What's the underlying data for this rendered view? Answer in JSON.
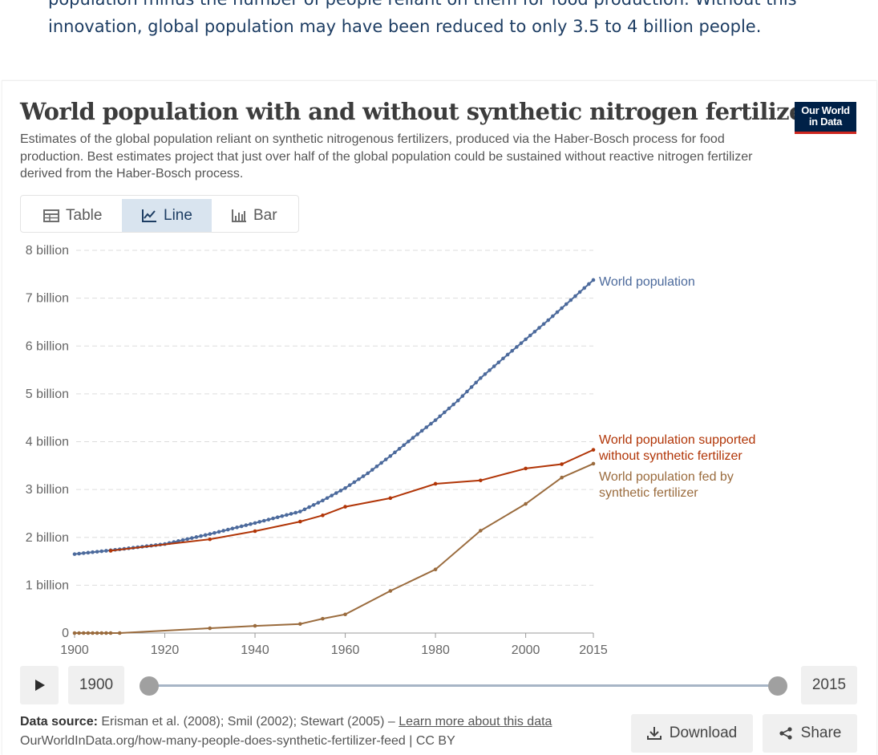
{
  "article": {
    "line1": "population minus the number of people reliant on them for food production. Without this",
    "line2": "innovation, global population may have been reduced to only 3.5 to 4 billion people."
  },
  "header": {
    "title": "World population with and without synthetic nitrogen fertilizers",
    "subtitle": "Estimates of the global population reliant on synthetic nitrogenous fertilizers, produced via the Haber-Bosch process for food production. Best estimates project that just over half of the global population could be sustained without reactive nitrogen fertilizer derived from the Haber-Bosch process.",
    "logo_line1": "Our World",
    "logo_line2": "in Data"
  },
  "tabs": [
    {
      "label": "Table",
      "icon": "table-icon"
    },
    {
      "label": "Line",
      "icon": "line-chart-icon",
      "active": true
    },
    {
      "label": "Bar",
      "icon": "bar-chart-icon"
    }
  ],
  "timeline": {
    "start_year": "1900",
    "end_year": "2015",
    "selected_start_fraction": 0,
    "selected_end_fraction": 1
  },
  "footer": {
    "source_label": "Data source:",
    "source_text": "Erisman et al. (2008); Smil (2002); Stewart (2005) –",
    "learn_more": "Learn more about this data",
    "line2": "OurWorldInData.org/how-many-people-does-synthetic-fertilizer-feed | CC BY",
    "download": "Download",
    "share": "Share"
  },
  "colors": {
    "world_population": "#4c6a9c",
    "without_fertilizer": "#b13507",
    "fed_by_fertilizer": "#9a6b3d",
    "accent": "#1d3d63"
  },
  "chart_data": {
    "type": "line",
    "title": "World population with and without synthetic nitrogen fertilizers",
    "xlim": [
      1900,
      2015
    ],
    "ylim": [
      0,
      8000000000
    ],
    "x_ticks": [
      {
        "value": 1900,
        "label": "1900"
      },
      {
        "value": 1920,
        "label": "1920"
      },
      {
        "value": 1940,
        "label": "1940"
      },
      {
        "value": 1960,
        "label": "1960"
      },
      {
        "value": 1980,
        "label": "1980"
      },
      {
        "value": 2000,
        "label": "2000"
      },
      {
        "value": 2015,
        "label": "2015"
      }
    ],
    "y_ticks": [
      {
        "value": 0,
        "label": "0"
      },
      {
        "value": 1000000000,
        "label": "1 billion"
      },
      {
        "value": 2000000000,
        "label": "2 billion"
      },
      {
        "value": 3000000000,
        "label": "3 billion"
      },
      {
        "value": 4000000000,
        "label": "4 billion"
      },
      {
        "value": 5000000000,
        "label": "5 billion"
      },
      {
        "value": 6000000000,
        "label": "6 billion"
      },
      {
        "value": 7000000000,
        "label": "7 billion"
      },
      {
        "value": 8000000000,
        "label": "8 billion"
      }
    ],
    "grid": "horizontal dashed",
    "series": [
      {
        "name": "World population",
        "color": "#4c6a9c",
        "points": [
          [
            1900,
            1650000000
          ],
          [
            1910,
            1750000000
          ],
          [
            1920,
            1860000000
          ],
          [
            1930,
            2070000000
          ],
          [
            1940,
            2300000000
          ],
          [
            1950,
            2540000000
          ],
          [
            1955,
            2770000000
          ],
          [
            1960,
            3030000000
          ],
          [
            1965,
            3340000000
          ],
          [
            1970,
            3700000000
          ],
          [
            1975,
            4080000000
          ],
          [
            1980,
            4450000000
          ],
          [
            1985,
            4860000000
          ],
          [
            1990,
            5330000000
          ],
          [
            1995,
            5740000000
          ],
          [
            2000,
            6140000000
          ],
          [
            2005,
            6540000000
          ],
          [
            2010,
            6960000000
          ],
          [
            2015,
            7380000000
          ]
        ]
      },
      {
        "name": "World population supported without synthetic fertilizer",
        "color": "#b13507",
        "points": [
          [
            1908,
            1720000000
          ],
          [
            1930,
            1960000000
          ],
          [
            1940,
            2130000000
          ],
          [
            1950,
            2330000000
          ],
          [
            1955,
            2460000000
          ],
          [
            1960,
            2640000000
          ],
          [
            1970,
            2820000000
          ],
          [
            1980,
            3120000000
          ],
          [
            1990,
            3190000000
          ],
          [
            2000,
            3440000000
          ],
          [
            2008,
            3530000000
          ],
          [
            2015,
            3830000000
          ]
        ]
      },
      {
        "name": "World population fed by synthetic fertilizer",
        "color": "#9a6b3d",
        "points": [
          [
            1900,
            0
          ],
          [
            1901,
            0
          ],
          [
            1902,
            0
          ],
          [
            1903,
            0
          ],
          [
            1904,
            0
          ],
          [
            1905,
            0
          ],
          [
            1906,
            0
          ],
          [
            1907,
            0
          ],
          [
            1908,
            0
          ],
          [
            1910,
            0
          ],
          [
            1930,
            100000000
          ],
          [
            1940,
            150000000
          ],
          [
            1950,
            190000000
          ],
          [
            1955,
            300000000
          ],
          [
            1960,
            390000000
          ],
          [
            1970,
            880000000
          ],
          [
            1980,
            1330000000
          ],
          [
            1990,
            2140000000
          ],
          [
            2000,
            2700000000
          ],
          [
            2008,
            3250000000
          ],
          [
            2015,
            3540000000
          ]
        ]
      }
    ]
  }
}
